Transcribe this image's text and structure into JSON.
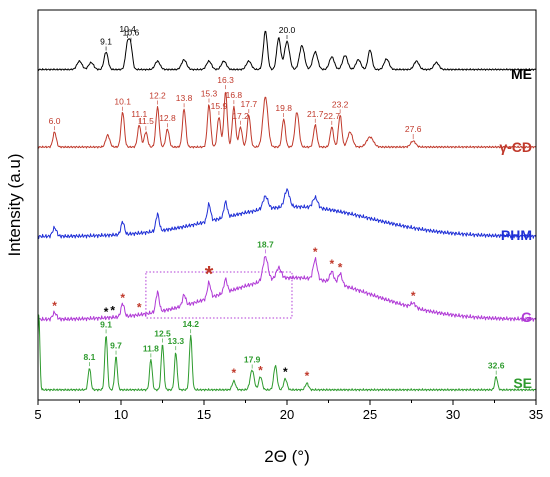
{
  "chart_data": {
    "type": "line",
    "xlabel": "2Θ (°)",
    "ylabel": "Intensity (a.u)",
    "xlim": [
      5,
      35
    ],
    "xticks": [
      "5",
      "10",
      "15",
      "20",
      "25",
      "30",
      "35"
    ],
    "grid": false,
    "legend": "none; series names printed at the right end of each trace",
    "series": [
      {
        "name": "ME",
        "color": "#000000",
        "baseline": 0.05,
        "noise": 0.012,
        "peaks": [
          [
            7.5,
            0.12,
            0.15
          ],
          [
            8.2,
            0.1,
            0.15
          ],
          [
            9.1,
            0.25,
            0.12
          ],
          [
            10.4,
            0.38,
            0.12
          ],
          [
            10.6,
            0.28,
            0.1
          ],
          [
            12.2,
            0.12,
            0.15
          ],
          [
            13.8,
            0.14,
            0.15
          ],
          [
            15.3,
            0.12,
            0.15
          ],
          [
            16.2,
            0.12,
            0.15
          ],
          [
            17.7,
            0.12,
            0.15
          ],
          [
            18.7,
            0.55,
            0.12
          ],
          [
            19.5,
            0.45,
            0.12
          ],
          [
            20.0,
            0.4,
            0.15
          ],
          [
            20.9,
            0.34,
            0.15
          ],
          [
            21.7,
            0.25,
            0.15
          ],
          [
            22.7,
            0.18,
            0.15
          ],
          [
            23.5,
            0.2,
            0.15
          ],
          [
            24.3,
            0.14,
            0.15
          ],
          [
            25.0,
            0.28,
            0.12
          ],
          [
            26.0,
            0.15,
            0.15
          ],
          [
            27.8,
            0.12,
            0.15
          ],
          [
            29.0,
            0.1,
            0.15
          ]
        ],
        "annotations": [
          {
            "label": "9.1",
            "x": 9.1
          },
          {
            "label": "10.4",
            "x": 10.4
          },
          {
            "label": "10.6",
            "x": 10.6
          },
          {
            "label": "20.0",
            "x": 20.0
          }
        ]
      },
      {
        "name": "γ-CD",
        "color": "#C0392B",
        "baseline": 0.05,
        "noise": 0.01,
        "peaks": [
          [
            6.0,
            0.15,
            0.1
          ],
          [
            9.2,
            0.12,
            0.12
          ],
          [
            10.1,
            0.35,
            0.1
          ],
          [
            11.1,
            0.22,
            0.1
          ],
          [
            11.5,
            0.15,
            0.1
          ],
          [
            12.2,
            0.4,
            0.1
          ],
          [
            12.8,
            0.18,
            0.1
          ],
          [
            13.8,
            0.38,
            0.1
          ],
          [
            15.3,
            0.42,
            0.1
          ],
          [
            15.9,
            0.3,
            0.1
          ],
          [
            16.3,
            0.55,
            0.1
          ],
          [
            16.8,
            0.4,
            0.1
          ],
          [
            17.2,
            0.2,
            0.1
          ],
          [
            17.7,
            0.32,
            0.1
          ],
          [
            18.7,
            0.5,
            0.15
          ],
          [
            19.8,
            0.28,
            0.1
          ],
          [
            20.6,
            0.35,
            0.12
          ],
          [
            21.7,
            0.22,
            0.1
          ],
          [
            22.7,
            0.2,
            0.1
          ],
          [
            23.2,
            0.32,
            0.1
          ],
          [
            23.8,
            0.15,
            0.15
          ],
          [
            25.0,
            0.1,
            0.2
          ],
          [
            27.6,
            0.06,
            0.15
          ]
        ],
        "annotations": [
          {
            "label": "6.0",
            "x": 6.0
          },
          {
            "label": "10.1",
            "x": 10.1
          },
          {
            "label": "11.1",
            "x": 11.1
          },
          {
            "label": "11.5",
            "x": 11.5
          },
          {
            "label": "12.2",
            "x": 12.2
          },
          {
            "label": "12.8",
            "x": 12.8
          },
          {
            "label": "13.8",
            "x": 13.8
          },
          {
            "label": "15.3",
            "x": 15.3
          },
          {
            "label": "15.9",
            "x": 15.9
          },
          {
            "label": "16.3",
            "x": 16.3
          },
          {
            "label": "16.8",
            "x": 16.8
          },
          {
            "label": "17.2",
            "x": 17.2
          },
          {
            "label": "17.7",
            "x": 17.7
          },
          {
            "label": "19.8",
            "x": 19.8
          },
          {
            "label": "21.7",
            "x": 21.7
          },
          {
            "label": "22.7",
            "x": 22.7
          },
          {
            "label": "23.2",
            "x": 23.2
          },
          {
            "label": "27.6",
            "x": 27.6
          }
        ]
      },
      {
        "name": "PHM",
        "color": "#1F2FD6",
        "baseline": 0.1,
        "noise": 0.025,
        "hump": {
          "center": 20.5,
          "height": 0.35,
          "width": 4.5
        },
        "peaks": [
          [
            6.0,
            0.1,
            0.12
          ],
          [
            10.1,
            0.15,
            0.1
          ],
          [
            12.2,
            0.2,
            0.1
          ],
          [
            15.3,
            0.2,
            0.1
          ],
          [
            16.3,
            0.18,
            0.1
          ],
          [
            18.7,
            0.15,
            0.15
          ],
          [
            20.0,
            0.2,
            0.15
          ],
          [
            21.7,
            0.12,
            0.15
          ]
        ],
        "annotations": []
      },
      {
        "name": "G",
        "color": "#B03AD6",
        "baseline": 0.05,
        "noise": 0.02,
        "hump": {
          "center": 20.5,
          "height": 0.38,
          "width": 4.5
        },
        "peaks": [
          [
            6.0,
            0.06,
            0.12
          ],
          [
            10.1,
            0.12,
            0.1
          ],
          [
            12.2,
            0.18,
            0.1
          ],
          [
            13.8,
            0.1,
            0.1
          ],
          [
            15.3,
            0.14,
            0.1
          ],
          [
            16.3,
            0.12,
            0.1
          ],
          [
            18.7,
            0.22,
            0.15
          ],
          [
            19.5,
            0.1,
            0.15
          ],
          [
            21.7,
            0.18,
            0.12
          ],
          [
            22.7,
            0.1,
            0.12
          ],
          [
            23.2,
            0.1,
            0.12
          ],
          [
            27.6,
            0.04,
            0.15
          ]
        ],
        "annotations": [
          {
            "label": "18.7",
            "x": 18.7
          }
        ],
        "markers": [
          {
            "x": 6.0,
            "color": "#C0392B"
          },
          {
            "x": 9.1,
            "color": "#000000"
          },
          {
            "x": 9.5,
            "color": "#000000"
          },
          {
            "x": 10.1,
            "color": "#C0392B"
          },
          {
            "x": 11.1,
            "color": "#C0392B"
          },
          {
            "x": 15.3,
            "color": "#C0392B",
            "large": true
          },
          {
            "x": 21.7,
            "color": "#C0392B"
          },
          {
            "x": 22.7,
            "color": "#C0392B"
          },
          {
            "x": 23.2,
            "color": "#C0392B"
          },
          {
            "x": 27.6,
            "color": "#C0392B"
          }
        ],
        "box": {
          "x": [
            11.5,
            20.3
          ]
        }
      },
      {
        "name": "SE",
        "color": "#2E9B2E",
        "baseline": 0.02,
        "noise": 0.01,
        "peaks": [
          [
            5.05,
            0.7,
            0.06
          ],
          [
            8.1,
            0.2,
            0.08
          ],
          [
            9.1,
            0.5,
            0.08
          ],
          [
            9.7,
            0.3,
            0.08
          ],
          [
            11.8,
            0.28,
            0.08
          ],
          [
            12.5,
            0.42,
            0.08
          ],
          [
            13.3,
            0.34,
            0.08
          ],
          [
            14.2,
            0.5,
            0.08
          ],
          [
            16.8,
            0.08,
            0.1
          ],
          [
            17.9,
            0.18,
            0.12
          ],
          [
            18.4,
            0.12,
            0.1
          ],
          [
            19.3,
            0.22,
            0.1
          ],
          [
            19.9,
            0.1,
            0.1
          ],
          [
            21.2,
            0.06,
            0.1
          ],
          [
            32.6,
            0.12,
            0.08
          ]
        ],
        "annotations": [
          {
            "label": "8.1",
            "x": 8.1
          },
          {
            "label": "9.1",
            "x": 9.1
          },
          {
            "label": "9.7",
            "x": 9.7
          },
          {
            "label": "11.8",
            "x": 11.8
          },
          {
            "label": "12.5",
            "x": 12.5
          },
          {
            "label": "13.3",
            "x": 13.3
          },
          {
            "label": "14.2",
            "x": 14.2
          },
          {
            "label": "17.9",
            "x": 17.9
          },
          {
            "label": "32.6",
            "x": 32.6
          }
        ],
        "markers": [
          {
            "x": 16.8,
            "color": "#C0392B"
          },
          {
            "x": 18.4,
            "color": "#C0392B"
          },
          {
            "x": 19.9,
            "color": "#000000"
          },
          {
            "x": 21.2,
            "color": "#C0392B"
          }
        ]
      }
    ]
  }
}
